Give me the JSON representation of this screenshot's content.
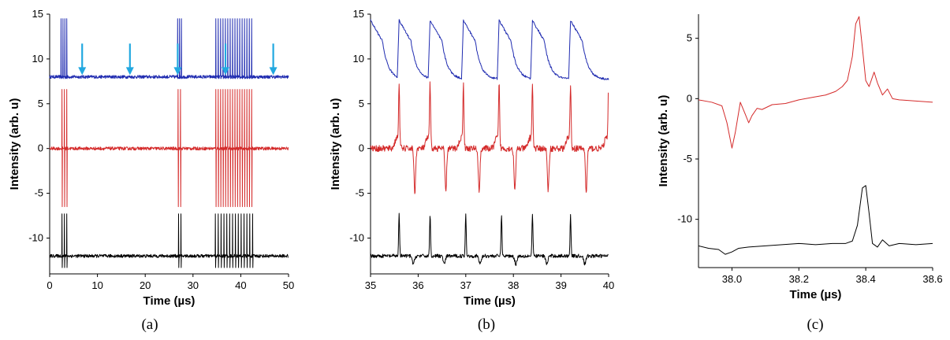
{
  "chart_data": [
    {
      "type": "line",
      "panel_label": "(a)",
      "xlabel": "Time (µs)",
      "ylabel": "Intensity (arb. u)",
      "xlim": [
        0,
        50
      ],
      "ylim": [
        -14,
        15
      ],
      "xticks": [
        0,
        10,
        20,
        30,
        40,
        50
      ],
      "yticks": [
        -10,
        -5,
        0,
        5,
        10,
        15
      ],
      "grid": false,
      "annotations": {
        "type": "arrow",
        "color": "#22a8e0",
        "x_positions": [
          6.8,
          16.8,
          26.8,
          36.8,
          46.8
        ],
        "y_tip": 8.2
      },
      "series": [
        {
          "color": "#1f2bb0",
          "baseline": 8.0,
          "spike_top": 14.5,
          "spike_bottom": 7.8,
          "spike_times": [
            2.4,
            2.8,
            3.2,
            3.6,
            26.8,
            27.2,
            27.6,
            34.8,
            35.3,
            35.8,
            36.3,
            36.8,
            37.3,
            37.8,
            38.3,
            38.8,
            39.3,
            39.8,
            40.3,
            40.8,
            41.3,
            41.8,
            42.3
          ]
        },
        {
          "color": "#d42a2a",
          "baseline": 0.0,
          "spike_top": 6.6,
          "spike_bottom": -6.5,
          "spike_times": [
            2.6,
            3.1,
            3.6,
            26.9,
            27.4,
            34.8,
            35.3,
            35.8,
            36.3,
            36.8,
            37.3,
            37.8,
            38.3,
            38.8,
            39.3,
            39.8,
            40.3,
            40.8,
            41.3,
            41.8,
            42.3
          ]
        },
        {
          "color": "#000000",
          "baseline": -12.0,
          "spike_top": -7.3,
          "spike_bottom": -13.3,
          "spike_times": [
            2.6,
            3.1,
            3.6,
            27.0,
            27.5,
            34.7,
            35.3,
            35.9,
            36.5,
            37.1,
            37.7,
            38.3,
            38.9,
            39.5,
            40.1,
            40.7,
            41.3,
            41.9,
            42.5
          ]
        }
      ]
    },
    {
      "type": "line",
      "panel_label": "(b)",
      "xlabel": "Time (µs)",
      "ylabel": "Intensity (arb. u)",
      "xlim": [
        35,
        40
      ],
      "ylim": [
        -14,
        15
      ],
      "xticks": [
        35,
        36,
        37,
        38,
        39,
        40
      ],
      "yticks": [
        -10,
        -5,
        0,
        5,
        10,
        15
      ],
      "grid": false,
      "series": [
        {
          "color": "#1f2bb0",
          "shape": "relaxation",
          "peak_times": [
            35.0,
            35.6,
            36.25,
            36.95,
            37.7,
            38.4,
            39.2
          ],
          "high": 14.3,
          "low": 7.7
        },
        {
          "color": "#d42a2a",
          "shape": "bipolar_spike",
          "peak_times": [
            35.6,
            36.25,
            36.95,
            37.7,
            38.4,
            39.2,
            40.0
          ],
          "baseline": 0.0,
          "high": 6.8,
          "low": -5.7
        },
        {
          "color": "#000000",
          "shape": "spike",
          "peak_times": [
            35.6,
            36.25,
            37.0,
            37.75,
            38.4,
            39.2
          ],
          "baseline": -12.0,
          "high": -7.3,
          "low": -12.9
        }
      ]
    },
    {
      "type": "line",
      "panel_label": "(c)",
      "xlabel": "Time (µs)",
      "ylabel": "Intensity (arb. u)",
      "xlim": [
        37.9,
        38.6
      ],
      "ylim": [
        -14,
        7
      ],
      "xticks": [
        38.0,
        38.2,
        38.4,
        38.6
      ],
      "xtick_labels": [
        "38.0",
        "38.2",
        "38.4",
        "38.6"
      ],
      "yticks": [
        -10,
        -5,
        0,
        5
      ],
      "grid": false,
      "series": [
        {
          "color": "#d42a2a",
          "x": [
            37.9,
            37.94,
            37.97,
            37.985,
            38.0,
            38.01,
            38.025,
            38.04,
            38.05,
            38.06,
            38.075,
            38.09,
            38.12,
            38.16,
            38.2,
            38.24,
            38.28,
            38.31,
            38.33,
            38.345,
            38.36,
            38.37,
            38.38,
            38.39,
            38.4,
            38.41,
            38.425,
            38.435,
            38.45,
            38.465,
            38.48,
            38.5,
            38.55,
            38.6
          ],
          "y": [
            -0.1,
            -0.3,
            -0.6,
            -2.0,
            -4.1,
            -2.8,
            -0.3,
            -1.3,
            -2.0,
            -1.4,
            -0.8,
            -0.9,
            -0.5,
            -0.4,
            -0.1,
            0.1,
            0.3,
            0.6,
            1.0,
            1.5,
            3.5,
            6.2,
            6.8,
            4.2,
            1.5,
            1.0,
            2.2,
            1.3,
            0.3,
            0.8,
            0.0,
            -0.1,
            -0.2,
            -0.3
          ]
        },
        {
          "color": "#000000",
          "x": [
            37.9,
            37.93,
            37.96,
            37.98,
            38.0,
            38.02,
            38.05,
            38.1,
            38.15,
            38.2,
            38.25,
            38.3,
            38.34,
            38.36,
            38.375,
            38.39,
            38.4,
            38.41,
            38.42,
            38.435,
            38.45,
            38.47,
            38.5,
            38.55,
            38.6
          ],
          "y": [
            -12.2,
            -12.4,
            -12.5,
            -12.9,
            -12.7,
            -12.4,
            -12.3,
            -12.2,
            -12.1,
            -12.0,
            -12.1,
            -12.0,
            -12.0,
            -11.8,
            -10.5,
            -7.4,
            -7.2,
            -9.5,
            -12.0,
            -12.3,
            -11.7,
            -12.2,
            -12.0,
            -12.1,
            -12.0
          ]
        }
      ]
    }
  ]
}
